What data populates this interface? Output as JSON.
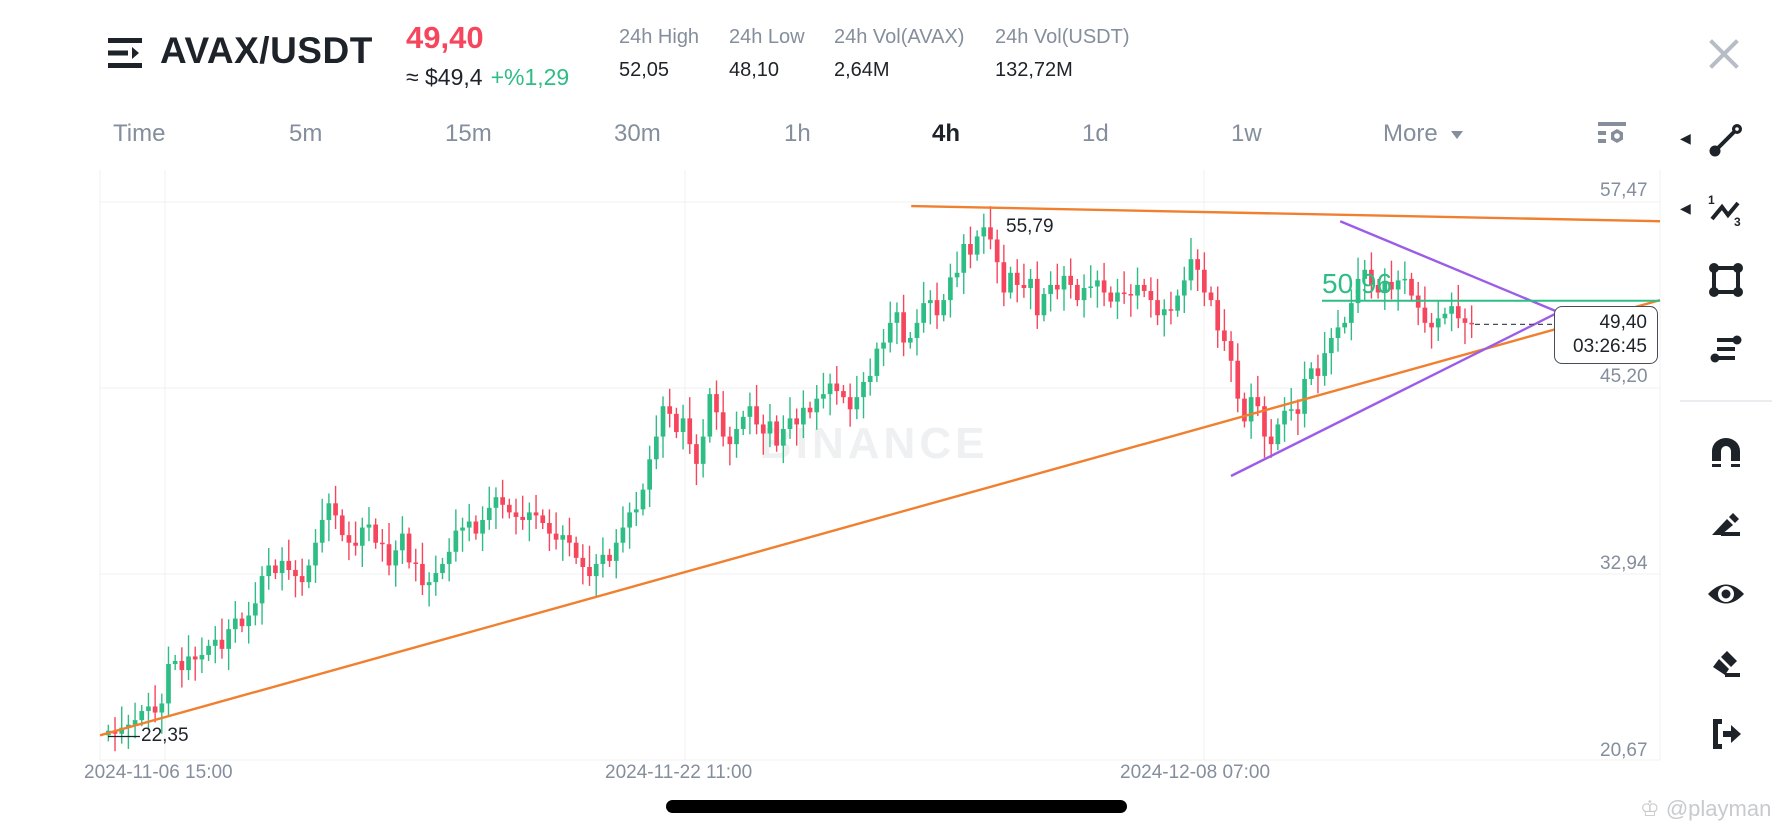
{
  "header": {
    "menu_icon": "menu-icon",
    "pair": "AVAX/USDT",
    "last_price": "49,40",
    "approx_value": "≈ $49,4",
    "change_pct": "+%1,29",
    "stats": [
      {
        "label": "24h High",
        "value": "52,05"
      },
      {
        "label": "24h Low",
        "value": "48,10"
      },
      {
        "label": "24h Vol(AVAX)",
        "value": "2,64M"
      },
      {
        "label": "24h Vol(USDT)",
        "value": "132,72M"
      }
    ],
    "close_icon": "close-icon"
  },
  "timeframes": {
    "items": [
      "Time",
      "5m",
      "15m",
      "30m",
      "1h",
      "4h",
      "1d",
      "1w",
      "More"
    ],
    "active": "4h",
    "settings_icon": "chart-settings-icon"
  },
  "toolbar": {
    "items": [
      {
        "name": "trend-line-tool",
        "icon": "trend-line-icon",
        "has_submenu": true
      },
      {
        "name": "fib-pattern-tool",
        "icon": "pattern-123-icon",
        "has_submenu": true
      },
      {
        "name": "rectangle-tool",
        "icon": "rectangle-icon",
        "has_submenu": false
      },
      {
        "name": "horizontal-lines-tool",
        "icon": "lines-icon",
        "has_submenu": false
      },
      {
        "name": "magnet-tool",
        "icon": "magnet-icon",
        "has_submenu": false
      },
      {
        "name": "pencil-tool",
        "icon": "pencil-icon",
        "has_submenu": false
      },
      {
        "name": "visibility-tool",
        "icon": "eye-icon",
        "has_submenu": false
      },
      {
        "name": "eraser-tool",
        "icon": "eraser-icon",
        "has_submenu": false
      },
      {
        "name": "exit-tool",
        "icon": "exit-icon",
        "has_submenu": false
      }
    ]
  },
  "colors": {
    "up": "#2ebd85",
    "down": "#f6465d",
    "trendline": "#f0802f",
    "triangle": "#9c5ce8",
    "level": "#2ebd85",
    "grid": "#f0f1f2",
    "text_muted": "#848e9c"
  },
  "overlays": {
    "high_marker": "55,79",
    "low_marker": "22,35",
    "level_label": "50,96",
    "current_price": "49,40",
    "countdown": "03:26:45",
    "watermark": "BINANCE"
  },
  "footer": {
    "credit": "@playman"
  },
  "chart_data": {
    "type": "candlestick",
    "title": "AVAX/USDT 4h",
    "xlabel": "",
    "ylabel": "",
    "ylim": [
      20.67,
      59.5
    ],
    "y_ticks": [
      57.47,
      45.2,
      32.94,
      20.67
    ],
    "y_tick_labels": [
      "57,47",
      "45,20",
      "32,94",
      "20,67"
    ],
    "x_tick_labels": [
      "2024-11-06 15:00",
      "2024-11-22 11:00",
      "2024-12-08 07:00"
    ],
    "x_tick_positions": [
      0.04,
      0.375,
      0.71
    ],
    "grid": true,
    "annotations": [
      {
        "type": "label",
        "text": "55,79",
        "value": 55.79
      },
      {
        "type": "label",
        "text": "22,35",
        "value": 22.35
      },
      {
        "type": "horizontal-line",
        "text": "50,96",
        "value": 50.96
      },
      {
        "type": "price-tag",
        "text": "49,40 / 03:26:45",
        "value": 49.4
      }
    ],
    "trendlines": [
      {
        "name": "resistance",
        "color": "#f0802f",
        "from": [
          0.52,
          57.2
        ],
        "to": [
          1.0,
          56.2
        ]
      },
      {
        "name": "support",
        "color": "#f0802f",
        "from": [
          0.0,
          22.3
        ],
        "to": [
          1.0,
          51.0
        ]
      },
      {
        "name": "triangle-upper",
        "color": "#9c5ce8",
        "from": [
          0.795,
          56.2
        ],
        "to": [
          0.935,
          50.2
        ]
      },
      {
        "name": "triangle-lower",
        "color": "#9c5ce8",
        "from": [
          0.725,
          39.4
        ],
        "to": [
          0.935,
          50.2
        ]
      }
    ],
    "closes": [
      22.6,
      22.4,
      22.8,
      23.0,
      23.3,
      23.9,
      24.2,
      23.8,
      24.4,
      27.0,
      27.2,
      26.6,
      27.5,
      27.3,
      27.6,
      28.2,
      28.6,
      28.0,
      29.3,
      30.0,
      29.5,
      30.2,
      31.0,
      32.8,
      33.5,
      33.0,
      33.8,
      33.2,
      32.8,
      32.4,
      33.5,
      35.0,
      36.5,
      37.6,
      36.8,
      35.5,
      35.0,
      34.8,
      36.0,
      36.2,
      35.0,
      34.9,
      33.5,
      34.5,
      35.6,
      33.7,
      33.6,
      32.2,
      32.4,
      33.0,
      33.6,
      34.4,
      35.8,
      36.0,
      36.4,
      35.6,
      36.5,
      37.3,
      38.0,
      37.5,
      37.0,
      36.7,
      36.5,
      37.0,
      36.8,
      36.3,
      35.6,
      35.2,
      35.5,
      35.0,
      34.0,
      33.4,
      32.8,
      33.6,
      34.2,
      33.8,
      35.0,
      36.0,
      37.0,
      37.2,
      38.5,
      40.5,
      42.0,
      44.0,
      43.5,
      42.3,
      43.2,
      41.5,
      40.2,
      42.0,
      44.8,
      43.6,
      42.0,
      41.5,
      42.5,
      43.3,
      44.0,
      42.8,
      42.2,
      43.0,
      41.4,
      42.5,
      43.2,
      42.8,
      43.9,
      43.6,
      44.5,
      44.8,
      45.5,
      45.0,
      44.6,
      43.8,
      44.6,
      45.6,
      46.0,
      47.8,
      48.2,
      49.5,
      50.2,
      48.2,
      48.5,
      49.5,
      50.8,
      51.0,
      50.0,
      51.0,
      52.5,
      52.8,
      54.7,
      54.0,
      55.2,
      55.8,
      55.0,
      53.5,
      51.5,
      52.8,
      52.0,
      51.8,
      52.4,
      50.0,
      51.4,
      52.0,
      51.7,
      52.6,
      52.0,
      51.0,
      51.8,
      51.9,
      52.3,
      51.5,
      50.9,
      51.5,
      51.4,
      51.3,
      52.0,
      51.6,
      51.0,
      50.0,
      50.4,
      50.3,
      51.3,
      52.3,
      53.7,
      53.0,
      51.5,
      51.0,
      49.0,
      48.3,
      47.0,
      44.5,
      43.0,
      44.6,
      44.0,
      42.0,
      41.5,
      42.8,
      43.7,
      43.8,
      43.5,
      45.8,
      46.5,
      46.0,
      47.5,
      48.5,
      49.2,
      49.5,
      50.8,
      52.4,
      53.0,
      52.0,
      51.5,
      52.2,
      51.7,
      52.3,
      52.4,
      51.3,
      50.5,
      49.5,
      49.2,
      49.8,
      50.1,
      50.6,
      49.8,
      49.5,
      49.4
    ],
    "values_note": "closes are approximate 4h candle closes read from the y-axis; last close 49,40"
  }
}
